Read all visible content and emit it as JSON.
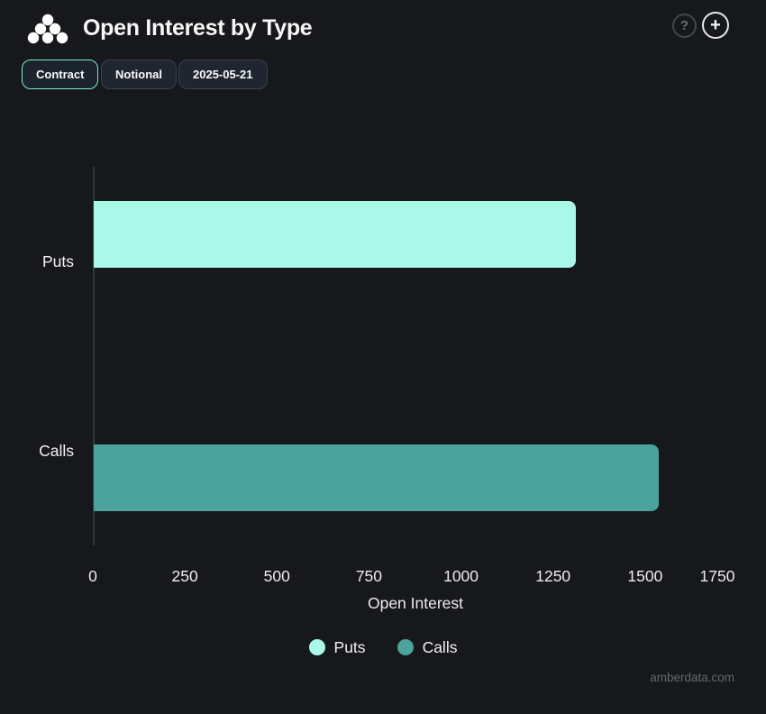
{
  "header": {
    "title": "Open Interest by Type",
    "help_glyph": "?",
    "add_glyph": "+"
  },
  "toolbar": {
    "buttons": [
      {
        "label": "Contract",
        "active": true
      },
      {
        "label": "Notional",
        "active": false
      },
      {
        "label": "2025-05-21",
        "active": false
      }
    ]
  },
  "colors": {
    "background": "#16181b",
    "accent_mint": "#7fe9d2",
    "puts_bar": "#aaf8e8",
    "calls_bar": "#4ba39b",
    "muted_text": "#63676b"
  },
  "chart_data": {
    "type": "bar",
    "orientation": "horizontal",
    "title": "Open Interest by Type",
    "categories": [
      "Puts",
      "Calls"
    ],
    "values": [
      1310,
      1535
    ],
    "series_colors": [
      "#aaf8e8",
      "#4ba39b"
    ],
    "xlabel": "Open Interest",
    "ylabel": "",
    "xlim": [
      0,
      1750
    ],
    "xticks": [
      0,
      250,
      500,
      750,
      1000,
      1250,
      1500,
      1750
    ],
    "grid": false,
    "legend": {
      "position": "bottom",
      "entries": [
        {
          "label": "Puts",
          "color": "#aaf8e8"
        },
        {
          "label": "Calls",
          "color": "#4ba39b"
        }
      ]
    }
  },
  "watermark": "amberdata.com"
}
